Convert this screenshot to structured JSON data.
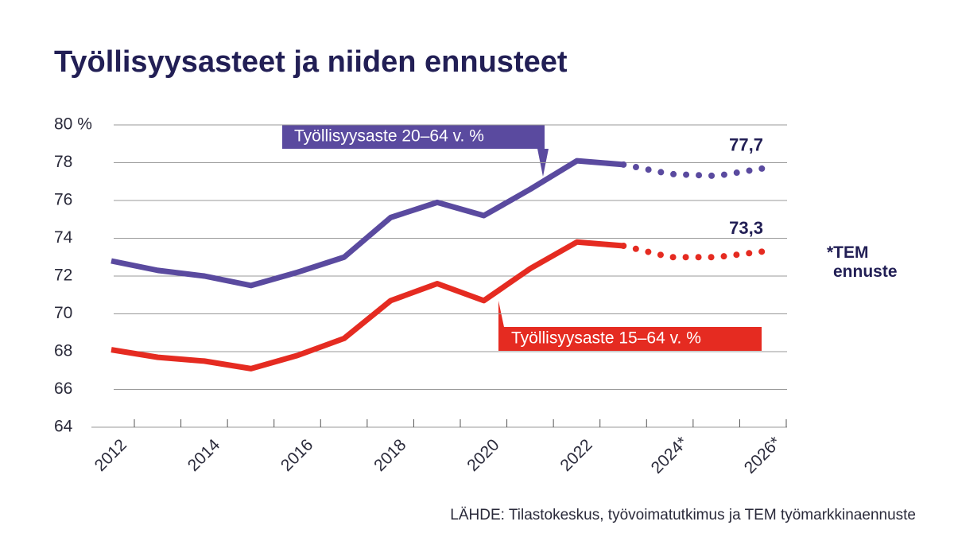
{
  "chart_data": {
    "type": "line",
    "title": "Työllisyysasteet ja niiden ennusteet",
    "categories": [
      "2012",
      null,
      "2014",
      null,
      "2016",
      null,
      "2018",
      null,
      "2020",
      null,
      "2022",
      null,
      "2024*",
      null,
      "2026*"
    ],
    "forecast_from": 11,
    "forecast_note": "*TEM ennuste",
    "source": "LÄHDE: Tilastokeskus, työvoimatutkimus ja TEM työmarkkinaennuste",
    "series": [
      {
        "name": "Työllisyysaste 20–64 v. %",
        "color": "#5a4a9f",
        "values": [
          72.8,
          72.3,
          72.0,
          71.5,
          72.2,
          73.0,
          75.1,
          75.9,
          75.2,
          76.6,
          78.1,
          77.9,
          77.4,
          77.3,
          77.7
        ],
        "end_label": "77,7"
      },
      {
        "name": "Työllisyysaste 15–64 v. %",
        "color": "#e52b21",
        "values": [
          68.1,
          67.7,
          67.5,
          67.1,
          67.8,
          68.7,
          70.7,
          71.6,
          70.7,
          72.4,
          73.8,
          73.6,
          73.0,
          73.0,
          73.3
        ],
        "end_label": "73,3"
      }
    ],
    "ylim": [
      64,
      80
    ],
    "yticks": [
      64,
      66,
      68,
      70,
      72,
      74,
      76,
      78,
      {
        "value": 80,
        "label": "80 %"
      }
    ],
    "grid": true
  }
}
